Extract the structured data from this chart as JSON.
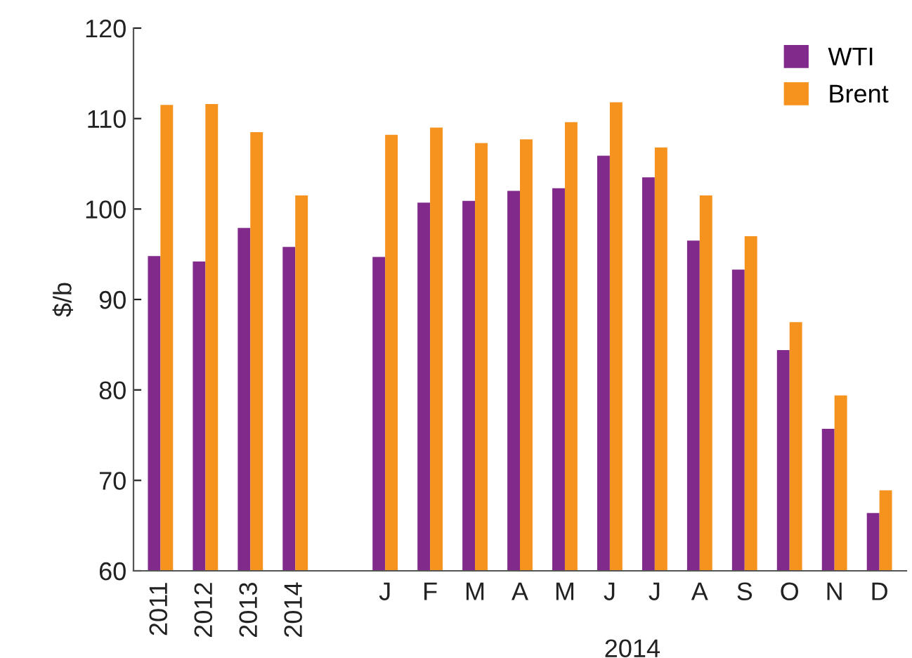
{
  "chart_data": {
    "type": "bar",
    "ylabel": "$/b",
    "xlabel": "2014",
    "categories": [
      "2011",
      "2012",
      "2013",
      "2014",
      null,
      "J",
      "F",
      "M",
      "A",
      "M",
      "J",
      "J",
      "A",
      "S",
      "O",
      "N",
      "D"
    ],
    "series": [
      {
        "name": "WTI",
        "color": "#812a8c",
        "values": [
          94.8,
          94.2,
          97.9,
          95.8,
          null,
          94.7,
          100.7,
          100.9,
          102.0,
          102.3,
          105.9,
          103.5,
          96.5,
          93.3,
          84.4,
          75.7,
          66.4
        ]
      },
      {
        "name": "Brent",
        "color": "#f6921e",
        "values": [
          111.5,
          111.6,
          108.5,
          101.5,
          null,
          108.2,
          109.0,
          107.3,
          107.7,
          109.6,
          111.8,
          106.8,
          101.5,
          97.0,
          87.5,
          79.4,
          68.9
        ]
      }
    ],
    "ylim": [
      60,
      120
    ],
    "yticks": [
      60,
      70,
      80,
      90,
      100,
      110,
      120
    ],
    "grid": false,
    "legend": "top right"
  }
}
